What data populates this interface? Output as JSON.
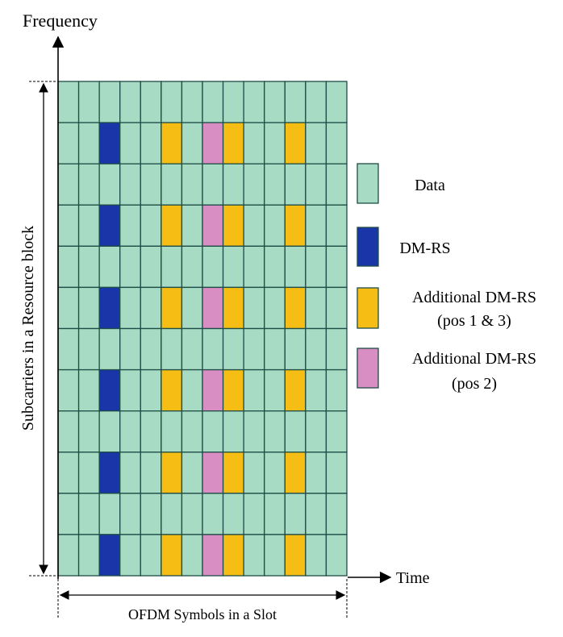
{
  "axes": {
    "y_label": "Frequency",
    "x_label": "Time",
    "vertical_span_label": "Subcarriers in a Resource block",
    "horizontal_span_label": "OFDM Symbols in a Slot"
  },
  "grid": {
    "symbols": 14,
    "subcarriers": 12,
    "dmrs_rows": [
      1,
      3,
      5,
      7,
      9,
      11
    ],
    "dmrs_symbol": 2,
    "additional_pos_1_3_symbols": [
      5,
      8,
      11
    ],
    "additional_pos_2_symbols": [
      7
    ]
  },
  "legend": [
    {
      "key": "data",
      "color": "#a8dbc3",
      "lines": [
        "Data"
      ]
    },
    {
      "key": "dmrs",
      "color": "#1a35a8",
      "lines": [
        "DM-RS"
      ]
    },
    {
      "key": "add13",
      "color": "#f6be14",
      "lines": [
        "Additional DM-RS",
        "(pos 1 & 3)"
      ]
    },
    {
      "key": "add2",
      "color": "#d98ec3",
      "lines": [
        "Additional DM-RS",
        "(pos 2)"
      ]
    }
  ],
  "colors": {
    "border": "#1e4c46"
  }
}
